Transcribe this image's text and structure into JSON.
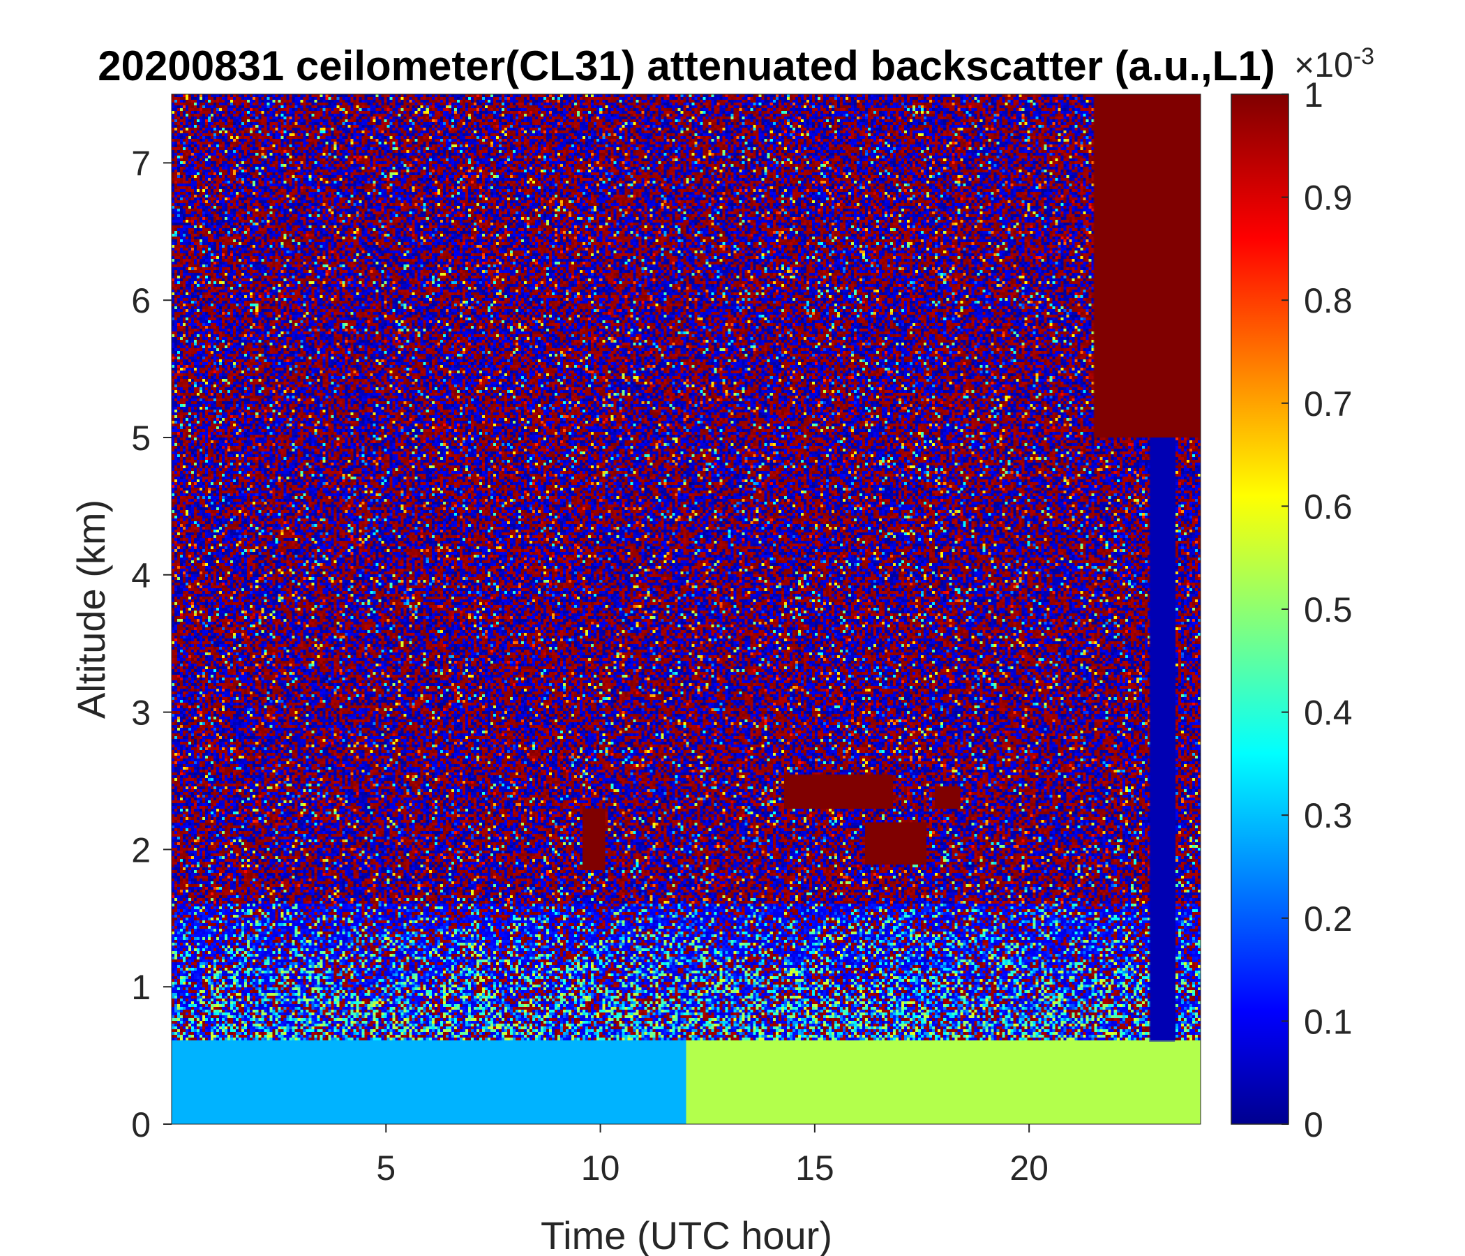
{
  "chart_data": {
    "type": "heatmap",
    "title": "20200831 ceilometer(CL31) attenuated backscatter (a.u.,L1)",
    "xlabel": "Time (UTC hour)",
    "ylabel": "Altitude (km)",
    "xlim": [
      0,
      24
    ],
    "ylim": [
      0,
      7.5
    ],
    "xticks": [
      5,
      10,
      15,
      20
    ],
    "xtick_labels": [
      "5",
      "10",
      "15",
      "20"
    ],
    "yticks": [
      0,
      1,
      2,
      3,
      4,
      5,
      6,
      7
    ],
    "ytick_labels": [
      "0",
      "1",
      "2",
      "3",
      "4",
      "5",
      "6",
      "7"
    ],
    "colorbar": {
      "colormap": "jet",
      "clim": [
        0,
        0.001
      ],
      "exponent_label": "×10",
      "exponent_power": "-3",
      "ticks": [
        0,
        0.1,
        0.2,
        0.3,
        0.4,
        0.5,
        0.6,
        0.7,
        0.8,
        0.9,
        1
      ],
      "tick_labels": [
        "0",
        "0.1",
        "0.2",
        "0.3",
        "0.4",
        "0.5",
        "0.6",
        "0.7",
        "0.8",
        "0.9",
        "1"
      ]
    },
    "features": [
      {
        "feature": "near-surface boundary layer",
        "time_range": [
          0,
          12
        ],
        "altitude_range": [
          0,
          0.6
        ],
        "value": 0.3
      },
      {
        "feature": "near-surface boundary layer",
        "time_range": [
          12,
          24
        ],
        "altitude_range": [
          0,
          0.6
        ],
        "value": 0.55
      },
      {
        "feature": "aerosol layer",
        "time_range": [
          14.3,
          16.8
        ],
        "altitude_range": [
          2.3,
          2.55
        ],
        "value": 1.0
      },
      {
        "feature": "aerosol layer",
        "time_range": [
          16.2,
          17.6
        ],
        "altitude_range": [
          1.9,
          2.2
        ],
        "value": 1.0
      },
      {
        "feature": "aerosol layer",
        "time_range": [
          17.8,
          18.4
        ],
        "altitude_range": [
          2.3,
          2.45
        ],
        "value": 1.0
      },
      {
        "feature": "aerosol patch",
        "time_range": [
          9.6,
          10.1
        ],
        "altitude_range": [
          1.85,
          2.3
        ],
        "value": 1.0
      },
      {
        "feature": "high cloud streaks",
        "time_range": [
          21.5,
          24
        ],
        "altitude_range": [
          5.0,
          7.5
        ],
        "value": 1.0
      },
      {
        "feature": "clear column",
        "time_range": [
          22.8,
          23.4
        ],
        "altitude_range": [
          0.6,
          5.0
        ],
        "value": 0.05
      }
    ]
  }
}
